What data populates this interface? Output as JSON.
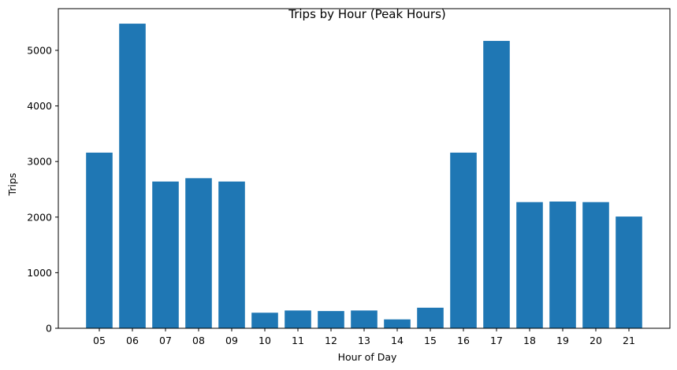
{
  "chart_data": {
    "type": "bar",
    "title": "Trips by Hour (Peak Hours)",
    "xlabel": "Hour of Day",
    "ylabel": "Trips",
    "categories": [
      "05",
      "06",
      "07",
      "08",
      "09",
      "10",
      "11",
      "12",
      "13",
      "14",
      "15",
      "16",
      "17",
      "18",
      "19",
      "20",
      "21"
    ],
    "values": [
      3160,
      5480,
      2640,
      2700,
      2640,
      280,
      320,
      310,
      320,
      160,
      370,
      3160,
      5170,
      2270,
      2280,
      2270,
      2010
    ],
    "ylim": [
      0,
      5750
    ],
    "yticks": [
      0,
      1000,
      2000,
      3000,
      4000,
      5000
    ],
    "grid": false,
    "colors": {
      "bar": "#1f77b4"
    }
  }
}
